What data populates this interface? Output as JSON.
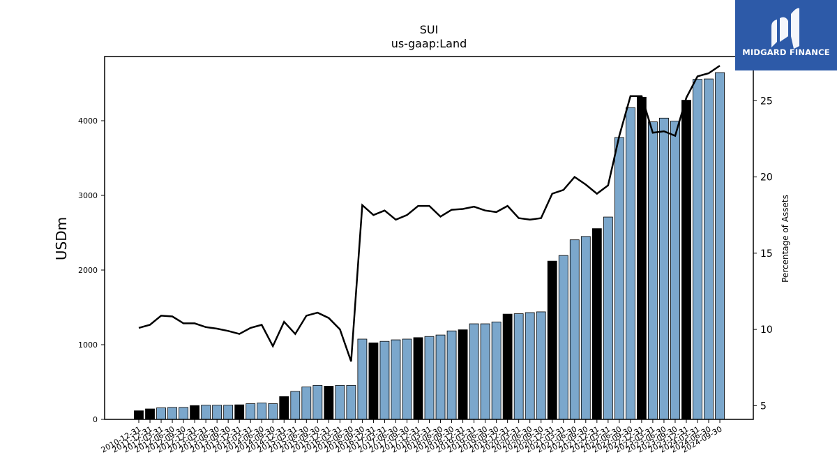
{
  "brand": {
    "name": "MIDGARD FINANCE",
    "bg_color": "#2d5aa8"
  },
  "chart_data": {
    "type": "bar",
    "title": "SUI",
    "subtitle": "us-gaap:Land",
    "ylabel": "USDm",
    "y2label": "Percentage of Assets",
    "ylim": [
      0,
      4860
    ],
    "y2lim": [
      4.1,
      27.9
    ],
    "yticks": [
      0,
      1000,
      2000,
      3000,
      4000
    ],
    "y2ticks": [
      5,
      10,
      15,
      20,
      25
    ],
    "bar_colors": {
      "annual": "#000000",
      "quarterly": "#7ba7cc"
    },
    "line_color": "#000000",
    "categories": [
      "2010-12-31",
      "2011-12-31",
      "2012-03-31",
      "2012-06-30",
      "2012-09-30",
      "2012-12-31",
      "2013-03-31",
      "2013-06-30",
      "2013-09-30",
      "2013-12-31",
      "2014-03-31",
      "2014-06-30",
      "2014-09-30",
      "2014-12-31",
      "2015-03-31",
      "2015-06-30",
      "2015-09-30",
      "2015-12-31",
      "2016-03-31",
      "2016-06-30",
      "2016-09-30",
      "2016-12-31",
      "2017-03-31",
      "2017-06-30",
      "2017-09-30",
      "2017-12-31",
      "2018-03-31",
      "2018-06-30",
      "2018-09-30",
      "2018-12-31",
      "2019-03-31",
      "2019-06-30",
      "2019-09-30",
      "2019-12-31",
      "2020-03-31",
      "2020-06-30",
      "2020-09-30",
      "2020-12-31",
      "2021-03-31",
      "2021-06-30",
      "2021-09-30",
      "2021-12-31",
      "2022-03-31",
      "2022-06-30",
      "2022-09-30",
      "2022-12-31",
      "2023-03-31",
      "2023-06-30",
      "2023-09-30",
      "2023-12-31",
      "2024-03-31",
      "2024-06-30",
      "2024-09-30"
    ],
    "annual": [
      true,
      true,
      false,
      false,
      false,
      true,
      false,
      false,
      false,
      true,
      false,
      false,
      false,
      true,
      false,
      false,
      false,
      true,
      false,
      false,
      false,
      true,
      false,
      false,
      false,
      true,
      false,
      false,
      false,
      true,
      false,
      false,
      false,
      true,
      false,
      false,
      false,
      true,
      false,
      false,
      false,
      true,
      false,
      false,
      false,
      true,
      false,
      false,
      false,
      true,
      false,
      false,
      false
    ],
    "series": [
      {
        "name": "USDm",
        "kind": "bar",
        "values": [
          115,
          140,
          155,
          160,
          160,
          185,
          190,
          190,
          190,
          195,
          210,
          220,
          210,
          305,
          375,
          435,
          455,
          445,
          455,
          455,
          1075,
          1025,
          1045,
          1065,
          1075,
          1095,
          1110,
          1130,
          1185,
          1200,
          1280,
          1280,
          1305,
          1410,
          1415,
          1430,
          1440,
          2120,
          2195,
          2405,
          2450,
          2555,
          2710,
          3775,
          4175,
          4315,
          3985,
          4035,
          3995,
          4275,
          4555,
          4560,
          4645
        ]
      },
      {
        "name": "Percentage of Assets",
        "kind": "line",
        "values": [
          10.1,
          10.3,
          10.9,
          10.85,
          10.4,
          10.4,
          10.15,
          10.05,
          9.9,
          9.7,
          10.1,
          10.3,
          8.9,
          10.5,
          9.7,
          10.9,
          11.1,
          10.75,
          10.0,
          7.9,
          18.15,
          17.5,
          17.8,
          17.2,
          17.5,
          18.1,
          18.1,
          17.4,
          17.85,
          17.9,
          18.05,
          17.8,
          17.7,
          18.1,
          17.3,
          17.2,
          17.3,
          18.9,
          19.15,
          20.0,
          19.5,
          18.9,
          19.45,
          22.7,
          25.3,
          25.3,
          22.9,
          23.0,
          22.7,
          25.2,
          26.6,
          26.8,
          27.3
        ]
      }
    ]
  }
}
